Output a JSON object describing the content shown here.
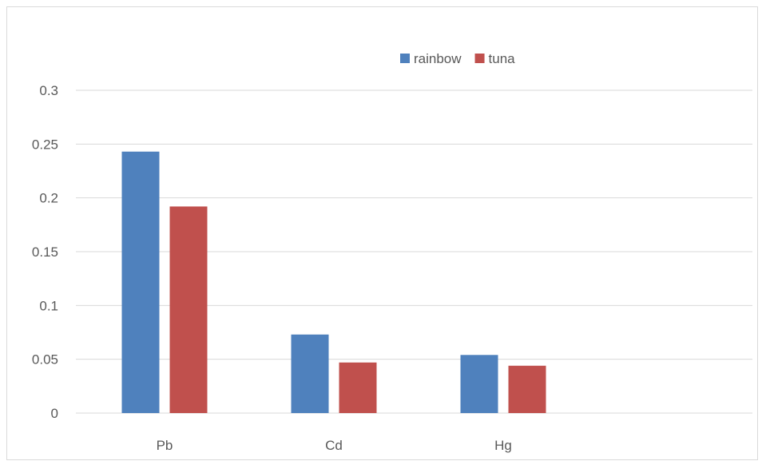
{
  "chart_data": {
    "type": "bar",
    "categories": [
      "Pb",
      "Cd",
      "Hg"
    ],
    "series": [
      {
        "name": "rainbow",
        "color": "#4f81bd",
        "values": [
          0.243,
          0.073,
          0.054
        ]
      },
      {
        "name": "tuna",
        "color": "#c0504d",
        "values": [
          0.192,
          0.047,
          0.044
        ]
      }
    ],
    "ylim": [
      0,
      0.3
    ],
    "yticks": [
      0,
      0.05,
      0.1,
      0.15,
      0.2,
      0.25,
      0.3
    ],
    "ytick_labels": [
      "0",
      "0.05",
      "0.1",
      "0.15",
      "0.2",
      "0.25",
      "0.3"
    ],
    "grid": true,
    "legend_position": "top-center",
    "title": "",
    "xlabel": "",
    "ylabel": ""
  }
}
